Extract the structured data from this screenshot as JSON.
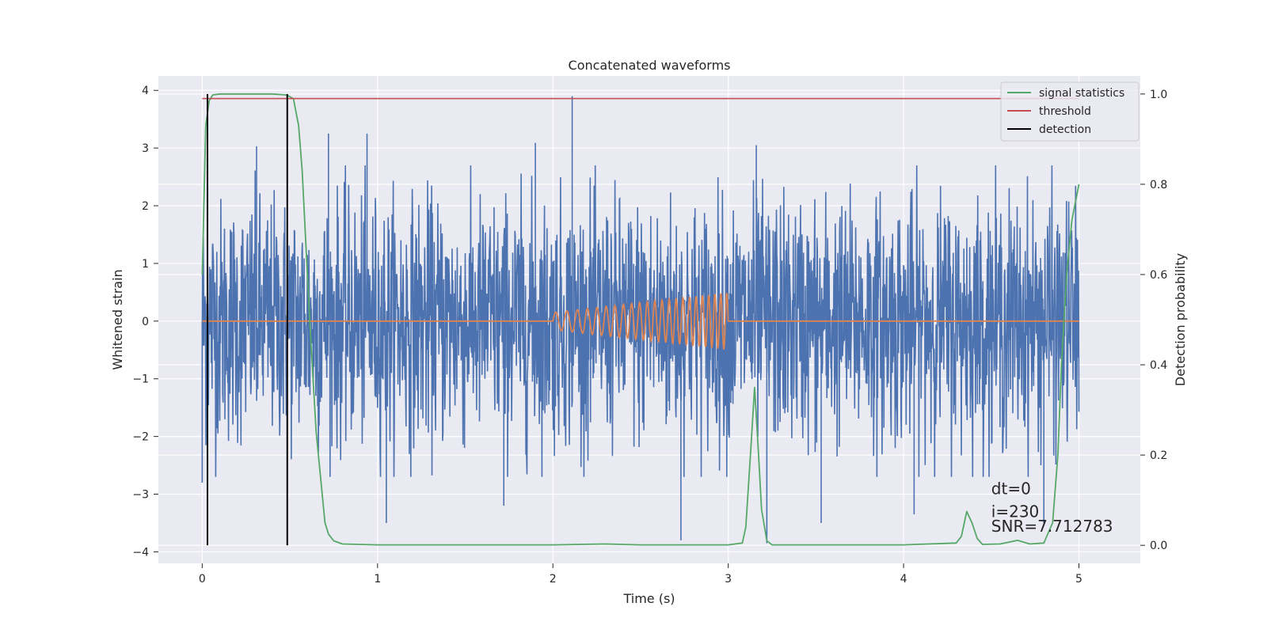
{
  "chart_data": {
    "type": "line",
    "title": "Concatenated waveforms",
    "xlabel": "Time (s)",
    "ylabel": "Whitened strain",
    "y2label": "Detection probability",
    "xlim": [
      -0.25,
      5.35
    ],
    "ylim": [
      -4.2,
      4.25
    ],
    "y2lim": [
      -0.04,
      1.04
    ],
    "xticks": [
      0,
      1,
      2,
      3,
      4,
      5
    ],
    "yticks": [
      -4,
      -3,
      -2,
      -1,
      0,
      1,
      2,
      3,
      4
    ],
    "y2ticks": [
      0.0,
      0.2,
      0.4,
      0.6,
      0.8,
      1.0
    ],
    "y2ticklabels": [
      "0.0",
      "0.2",
      "0.4",
      "0.6",
      "0.8",
      "1.0"
    ],
    "grid": true,
    "legend_position": "top-right",
    "background": "#eaeaf2",
    "series": [
      {
        "name": "",
        "axis": "left",
        "color": "#4c72b0",
        "kind": "noise",
        "x_range": [
          0,
          5
        ],
        "typical_amplitude": 1.9,
        "spikes": [
          {
            "x": 2.11,
            "y": 3.9
          },
          {
            "x": 3.16,
            "y": 3.05
          },
          {
            "x": 0.31,
            "y": 3.03
          },
          {
            "x": 0.72,
            "y": 3.25
          },
          {
            "x": 0.94,
            "y": 3.25
          },
          {
            "x": 1.9,
            "y": 3.09
          },
          {
            "x": 2.73,
            "y": -3.8
          },
          {
            "x": 3.22,
            "y": -3.85
          },
          {
            "x": 4.8,
            "y": -3.5
          },
          {
            "x": 1.05,
            "y": -3.5
          },
          {
            "x": 0.0,
            "y": -2.8
          },
          {
            "x": 1.72,
            "y": -3.2
          },
          {
            "x": 3.53,
            "y": -3.5
          },
          {
            "x": 4.06,
            "y": -3.35
          }
        ]
      },
      {
        "name": "",
        "axis": "left",
        "color": "#dd8452",
        "kind": "chirp",
        "x_range": [
          0,
          5
        ],
        "chirp_start": 2.0,
        "chirp_end": 3.0,
        "amp_start": 0.15,
        "amp_end": 0.5,
        "freq_start": 15,
        "freq_end": 30
      },
      {
        "name": "signal statistics",
        "axis": "right",
        "color": "#55a868",
        "x": [
          0.0,
          0.02,
          0.04,
          0.06,
          0.1,
          0.2,
          0.3,
          0.4,
          0.48,
          0.52,
          0.55,
          0.57,
          0.6,
          0.62,
          0.65,
          0.7,
          0.72,
          0.75,
          0.8,
          1.0,
          1.5,
          2.0,
          2.3,
          2.5,
          3.0,
          3.08,
          3.1,
          3.13,
          3.15,
          3.17,
          3.19,
          3.22,
          3.25,
          3.3,
          3.5,
          4.0,
          4.3,
          4.33,
          4.36,
          4.39,
          4.42,
          4.45,
          4.55,
          4.65,
          4.72,
          4.8,
          4.85,
          4.88,
          4.9,
          4.93,
          4.96,
          5.0
        ],
        "values": [
          0.6,
          0.93,
          0.985,
          0.998,
          1.0,
          1.0,
          1.0,
          1.0,
          0.998,
          0.99,
          0.93,
          0.83,
          0.6,
          0.45,
          0.25,
          0.05,
          0.025,
          0.01,
          0.003,
          0.001,
          0.001,
          0.001,
          0.003,
          0.001,
          0.001,
          0.005,
          0.04,
          0.22,
          0.35,
          0.22,
          0.08,
          0.01,
          0.001,
          0.001,
          0.001,
          0.001,
          0.005,
          0.02,
          0.075,
          0.05,
          0.015,
          0.002,
          0.003,
          0.011,
          0.003,
          0.005,
          0.05,
          0.2,
          0.4,
          0.6,
          0.72,
          0.8
        ]
      },
      {
        "name": "threshold",
        "axis": "right",
        "color": "#c44e52",
        "x": [
          0,
          5
        ],
        "values": [
          0.99,
          0.99
        ]
      },
      {
        "name": "detection",
        "axis": "right",
        "color": "#000000",
        "vlines": [
          0.03,
          0.485
        ],
        "ymin": 0.0,
        "ymax": 1.0
      }
    ],
    "annotations": [
      {
        "text": "dt=0",
        "x": 4.5,
        "y": -3.0
      },
      {
        "text": "i=230",
        "x": 4.5,
        "y": -3.4
      },
      {
        "text": "SNR=7.712783",
        "x": 4.5,
        "y": -3.65
      }
    ]
  }
}
